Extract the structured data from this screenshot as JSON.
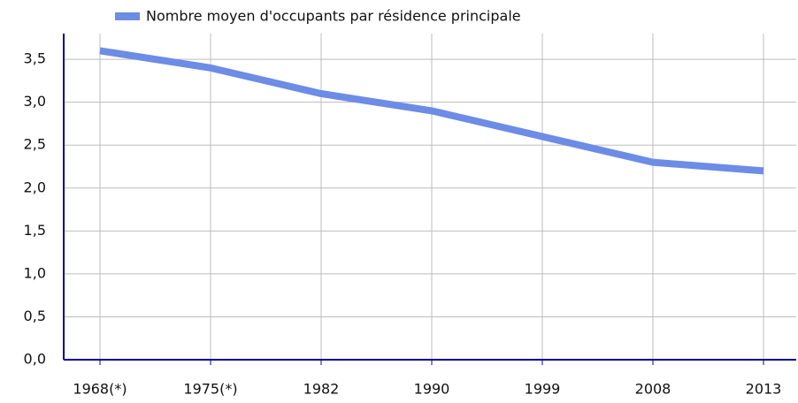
{
  "chart_data": {
    "type": "line",
    "series": [
      {
        "name": "Nombre moyen d'occupants par résidence principale",
        "color": "#6d8ce6",
        "values": [
          3.6,
          3.4,
          3.1,
          2.9,
          2.6,
          2.3,
          2.2
        ]
      }
    ],
    "categories": [
      "1968(*)",
      "1975(*)",
      "1982",
      "1990",
      "1999",
      "2008",
      "2013"
    ],
    "ylim": [
      0,
      3.8
    ],
    "yticks": [
      {
        "value": 0,
        "label": "0,0"
      },
      {
        "value": 0.5,
        "label": "0,5"
      },
      {
        "value": 1,
        "label": "1,0"
      },
      {
        "value": 1.5,
        "label": "1,5"
      },
      {
        "value": 2,
        "label": "2,0"
      },
      {
        "value": 2.5,
        "label": "2,5"
      },
      {
        "value": 3,
        "label": "3,0"
      },
      {
        "value": 3.5,
        "label": "3,5"
      }
    ],
    "grid": true
  }
}
